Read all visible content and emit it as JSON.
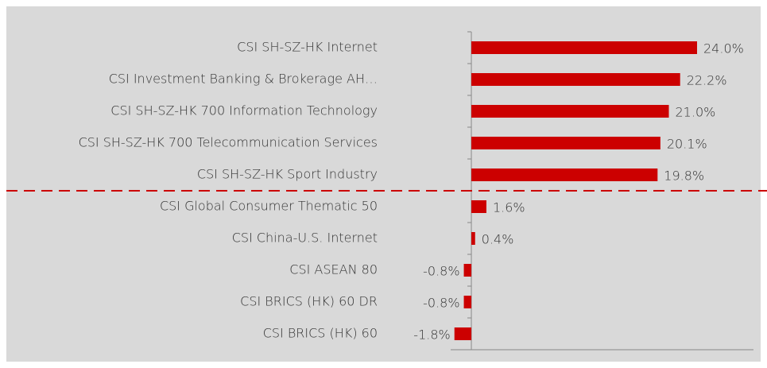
{
  "chart_data": {
    "type": "bar",
    "orientation": "horizontal",
    "categories": [
      "CSI SH-SZ-HK Internet",
      "CSI Investment Banking & Brokerage AH…",
      "CSI SH-SZ-HK 700 Information Technology",
      "CSI SH-SZ-HK 700 Telecommunication Services",
      "CSI SH-SZ-HK Sport Industry",
      "CSI Global Consumer Thematic 50",
      "CSI China-U.S. Internet",
      "CSI ASEAN 80",
      "CSI BRICS (HK) 60 DR",
      "CSI BRICS (HK) 60"
    ],
    "values": [
      24.0,
      22.2,
      21.0,
      20.1,
      19.8,
      1.6,
      0.4,
      -0.8,
      -0.8,
      -1.8
    ],
    "value_labels": [
      "24.0%",
      "22.2%",
      "21.0%",
      "20.1%",
      "19.8%",
      "1.6%",
      "0.4%",
      "-0.8%",
      "-0.8%",
      "-1.8%"
    ],
    "color": "#cc0000",
    "xlim": [
      -2.2,
      30
    ]
  }
}
